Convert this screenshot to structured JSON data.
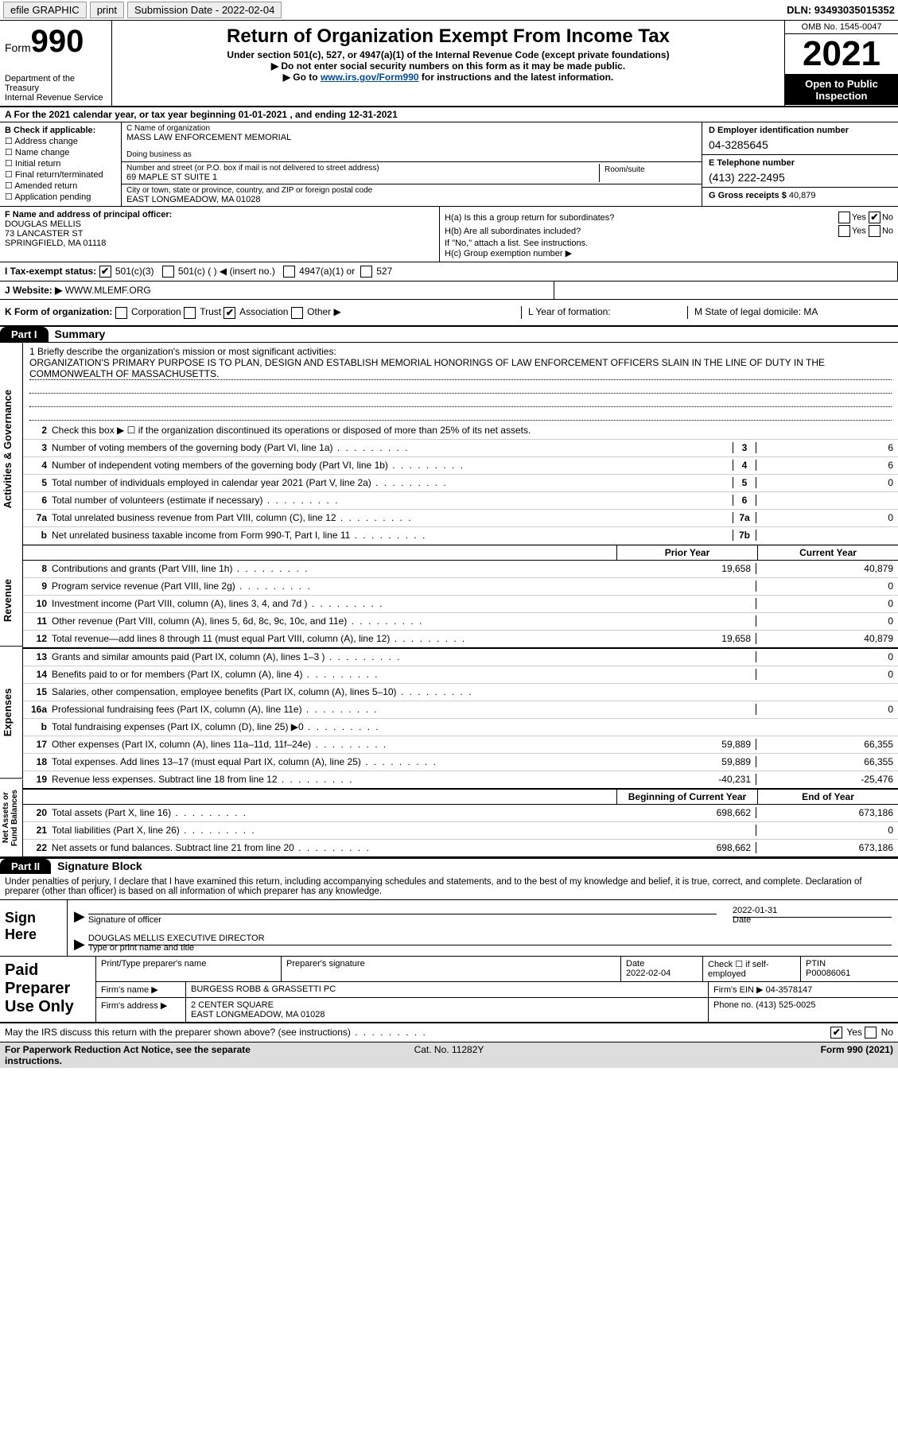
{
  "topbar": {
    "efile": "efile GRAPHIC",
    "print": "print",
    "submission_label": "Submission Date - 2022-02-04",
    "dln": "DLN: 93493035015352"
  },
  "header": {
    "form_prefix": "Form",
    "form_number": "990",
    "dept": "Department of the Treasury",
    "irs": "Internal Revenue Service",
    "title": "Return of Organization Exempt From Income Tax",
    "sub1": "Under section 501(c), 527, or 4947(a)(1) of the Internal Revenue Code (except private foundations)",
    "sub2": "▶ Do not enter social security numbers on this form as it may be made public.",
    "sub3_pre": "▶ Go to ",
    "sub3_link": "www.irs.gov/Form990",
    "sub3_post": " for instructions and the latest information.",
    "omb": "OMB No. 1545-0047",
    "year": "2021",
    "open_pub": "Open to Public Inspection"
  },
  "rowA": "A For the 2021 calendar year, or tax year beginning 01-01-2021   , and ending 12-31-2021",
  "colB": {
    "label": "B Check if applicable:",
    "items": [
      "Address change",
      "Name change",
      "Initial return",
      "Final return/terminated",
      "Amended return",
      "Application pending"
    ]
  },
  "colC": {
    "name_lbl": "C Name of organization",
    "name": "MASS LAW ENFORCEMENT MEMORIAL",
    "dba_lbl": "Doing business as",
    "dba": "",
    "street_lbl": "Number and street (or P.O. box if mail is not delivered to street address)",
    "street": "69 MAPLE ST SUITE 1",
    "room_lbl": "Room/suite",
    "city_lbl": "City or town, state or province, country, and ZIP or foreign postal code",
    "city": "EAST LONGMEADOW, MA  01028"
  },
  "colD": {
    "ein_lbl": "D Employer identification number",
    "ein": "04-3285645",
    "phone_lbl": "E Telephone number",
    "phone": "(413) 222-2495",
    "gross_lbl": "G Gross receipts $",
    "gross": "40,879"
  },
  "colF": {
    "lbl": "F Name and address of principal officer:",
    "name": "DOUGLAS MELLIS",
    "addr1": "73 LANCASTER ST",
    "addr2": "SPRINGFIELD, MA  01118"
  },
  "colH": {
    "ha": "H(a)  Is this a group return for subordinates?",
    "hb": "H(b)  Are all subordinates included?",
    "hb_note": "If \"No,\" attach a list. See instructions.",
    "hc": "H(c)  Group exemption number ▶"
  },
  "rowI": {
    "lbl": "I  Tax-exempt status:",
    "opts": [
      "501(c)(3)",
      "501(c) (  ) ◀ (insert no.)",
      "4947(a)(1) or",
      "527"
    ]
  },
  "rowJ": {
    "lbl": "J  Website: ▶",
    "val": "WWW.MLEMF.ORG"
  },
  "rowK": {
    "k": "K Form of organization:",
    "opts": [
      "Corporation",
      "Trust",
      "Association",
      "Other ▶"
    ],
    "l": "L Year of formation:",
    "m": "M State of legal domicile: MA"
  },
  "part1": {
    "tab": "Part I",
    "title": "Summary",
    "q1_lbl": "1  Briefly describe the organization's mission or most significant activities:",
    "q1_text": "ORGANIZATION'S PRIMARY PURPOSE IS TO PLAN, DESIGN AND ESTABLISH MEMORIAL HONORINGS OF LAW ENFORCEMENT OFFICERS SLAIN IN THE LINE OF DUTY IN THE COMMONWEALTH OF MASSACHUSETTS.",
    "q2": "Check this box ▶ ☐ if the organization discontinued its operations or disposed of more than 25% of its net assets.",
    "lines_ag": [
      {
        "n": "3",
        "t": "Number of voting members of the governing body (Part VI, line 1a)",
        "box": "3",
        "v": "6"
      },
      {
        "n": "4",
        "t": "Number of independent voting members of the governing body (Part VI, line 1b)",
        "box": "4",
        "v": "6"
      },
      {
        "n": "5",
        "t": "Total number of individuals employed in calendar year 2021 (Part V, line 2a)",
        "box": "5",
        "v": "0"
      },
      {
        "n": "6",
        "t": "Total number of volunteers (estimate if necessary)",
        "box": "6",
        "v": ""
      },
      {
        "n": "7a",
        "t": "Total unrelated business revenue from Part VIII, column (C), line 12",
        "box": "7a",
        "v": "0"
      },
      {
        "n": "b",
        "t": "Net unrelated business taxable income from Form 990-T, Part I, line 11",
        "box": "7b",
        "v": ""
      }
    ],
    "hdr_prior": "Prior Year",
    "hdr_curr": "Current Year",
    "lines_rev": [
      {
        "n": "8",
        "t": "Contributions and grants (Part VIII, line 1h)",
        "p": "19,658",
        "c": "40,879"
      },
      {
        "n": "9",
        "t": "Program service revenue (Part VIII, line 2g)",
        "p": "",
        "c": "0"
      },
      {
        "n": "10",
        "t": "Investment income (Part VIII, column (A), lines 3, 4, and 7d )",
        "p": "",
        "c": "0"
      },
      {
        "n": "11",
        "t": "Other revenue (Part VIII, column (A), lines 5, 6d, 8c, 9c, 10c, and 11e)",
        "p": "",
        "c": "0"
      },
      {
        "n": "12",
        "t": "Total revenue—add lines 8 through 11 (must equal Part VIII, column (A), line 12)",
        "p": "19,658",
        "c": "40,879"
      }
    ],
    "lines_exp": [
      {
        "n": "13",
        "t": "Grants and similar amounts paid (Part IX, column (A), lines 1–3 )",
        "p": "",
        "c": "0"
      },
      {
        "n": "14",
        "t": "Benefits paid to or for members (Part IX, column (A), line 4)",
        "p": "",
        "c": "0"
      },
      {
        "n": "15",
        "t": "Salaries, other compensation, employee benefits (Part IX, column (A), lines 5–10)",
        "p": "",
        "c": ""
      },
      {
        "n": "16a",
        "t": "Professional fundraising fees (Part IX, column (A), line 11e)",
        "p": "",
        "c": "0"
      },
      {
        "n": "b",
        "t": "Total fundraising expenses (Part IX, column (D), line 25) ▶0",
        "p": "shaded",
        "c": "shaded"
      },
      {
        "n": "17",
        "t": "Other expenses (Part IX, column (A), lines 11a–11d, 11f–24e)",
        "p": "59,889",
        "c": "66,355"
      },
      {
        "n": "18",
        "t": "Total expenses. Add lines 13–17 (must equal Part IX, column (A), line 25)",
        "p": "59,889",
        "c": "66,355"
      },
      {
        "n": "19",
        "t": "Revenue less expenses. Subtract line 18 from line 12",
        "p": "-40,231",
        "c": "-25,476"
      }
    ],
    "hdr_begin": "Beginning of Current Year",
    "hdr_end": "End of Year",
    "lines_net": [
      {
        "n": "20",
        "t": "Total assets (Part X, line 16)",
        "p": "698,662",
        "c": "673,186"
      },
      {
        "n": "21",
        "t": "Total liabilities (Part X, line 26)",
        "p": "",
        "c": "0"
      },
      {
        "n": "22",
        "t": "Net assets or fund balances. Subtract line 21 from line 20",
        "p": "698,662",
        "c": "673,186"
      }
    ],
    "side_ag": "Activities & Governance",
    "side_rev": "Revenue",
    "side_exp": "Expenses",
    "side_net": "Net Assets or Fund Balances"
  },
  "part2": {
    "tab": "Part II",
    "title": "Signature Block",
    "perjury": "Under penalties of perjury, I declare that I have examined this return, including accompanying schedules and statements, and to the best of my knowledge and belief, it is true, correct, and complete. Declaration of preparer (other than officer) is based on all information of which preparer has any knowledge.",
    "sign_here": "Sign Here",
    "sig_officer": "Signature of officer",
    "sig_date": "2022-01-31",
    "date_lbl": "Date",
    "typed_name": "DOUGLAS MELLIS  EXECUTIVE DIRECTOR",
    "typed_lbl": "Type or print name and title",
    "paid": "Paid Preparer Use Only",
    "pp_name_lbl": "Print/Type preparer's name",
    "pp_sig_lbl": "Preparer's signature",
    "pp_date_lbl": "Date",
    "pp_date": "2022-02-04",
    "pp_check_lbl": "Check ☐ if self-employed",
    "pp_ptin_lbl": "PTIN",
    "pp_ptin": "P00086061",
    "firm_name_lbl": "Firm's name    ▶",
    "firm_name": "BURGESS ROBB & GRASSETTI PC",
    "firm_ein_lbl": "Firm's EIN ▶",
    "firm_ein": "04-3578147",
    "firm_addr_lbl": "Firm's address ▶",
    "firm_addr1": "2 CENTER SQUARE",
    "firm_addr2": "EAST LONGMEADOW, MA  01028",
    "firm_phone_lbl": "Phone no.",
    "firm_phone": "(413) 525-0025",
    "discuss": "May the IRS discuss this return with the preparer shown above? (see instructions)"
  },
  "footer": {
    "pra": "For Paperwork Reduction Act Notice, see the separate instructions.",
    "cat": "Cat. No. 11282Y",
    "form": "Form 990 (2021)"
  },
  "labels": {
    "yes": "Yes",
    "no": "No"
  }
}
